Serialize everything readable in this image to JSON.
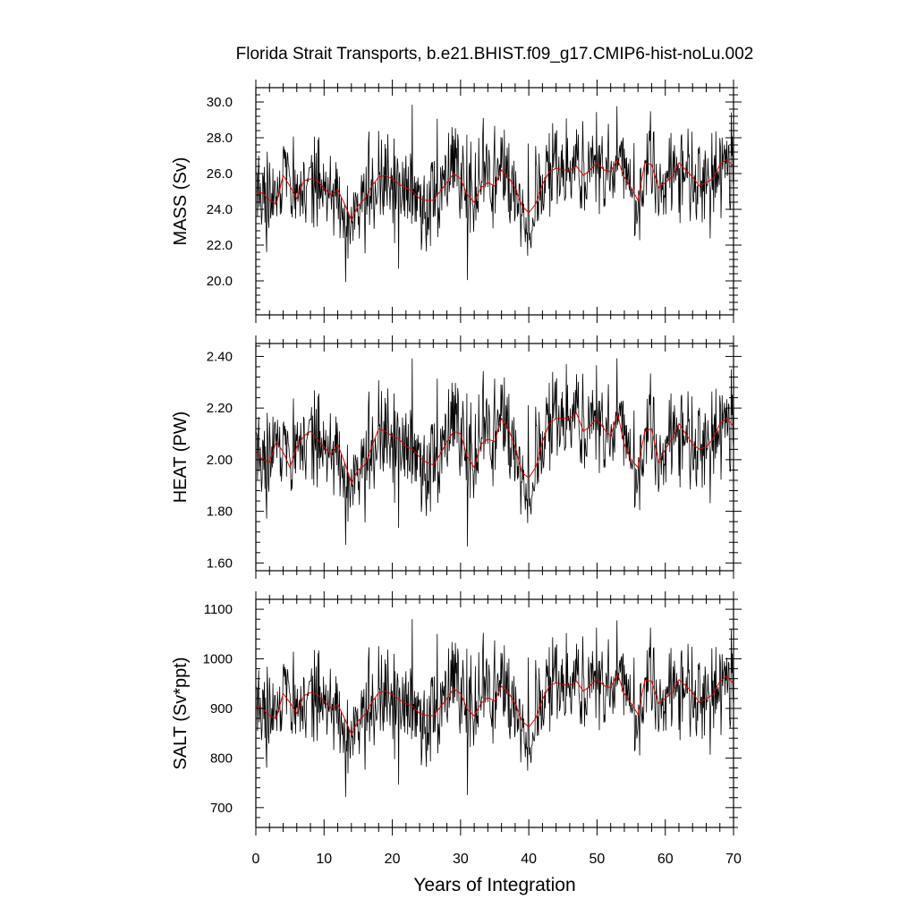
{
  "title": "Florida Strait Transports, b.e21.BHIST.f09_g17.CMIP6-hist-noLu.002",
  "xlabel": "Years of Integration",
  "xticks": [
    "0",
    "10",
    "20",
    "30",
    "40",
    "50",
    "60",
    "70"
  ],
  "colors": {
    "raw": "#000000",
    "smoothed": "#e00000",
    "frame": "#000000"
  },
  "chart_data": [
    {
      "type": "line",
      "ylabel": "MASS (Sv)",
      "xlim": [
        0,
        70
      ],
      "ylim": [
        18.1,
        30.8
      ],
      "yticks": [
        "20.0",
        "22.0",
        "24.0",
        "26.0",
        "28.0",
        "30.0"
      ],
      "noise": {
        "mean": 25.35,
        "amplitude": 2.2,
        "minimum": 18.1,
        "maximum": 30.7
      },
      "series": [
        {
          "role": "raw-monthly",
          "samples_per_year": 12
        },
        {
          "role": "smoothed",
          "x": [
            0,
            1,
            2,
            3,
            4,
            5,
            6,
            7,
            8,
            9,
            10,
            11,
            12,
            13,
            14,
            15,
            16,
            17,
            18,
            19,
            20,
            21,
            22,
            23,
            24,
            25,
            26,
            27,
            28,
            29,
            30,
            31,
            32,
            33,
            34,
            35,
            36,
            37,
            38,
            39,
            40,
            41,
            42,
            43,
            44,
            45,
            46,
            47,
            48,
            49,
            50,
            51,
            52,
            53,
            54,
            55,
            56,
            57,
            58,
            59,
            60,
            61,
            62,
            63,
            64,
            65,
            66,
            67,
            68,
            69,
            70
          ],
          "y": [
            25.0,
            24.9,
            24.5,
            24.3,
            25.9,
            25.3,
            24.6,
            25.6,
            25.7,
            25.6,
            25.2,
            24.8,
            25.1,
            24.3,
            23.4,
            24.2,
            24.6,
            25.3,
            25.8,
            25.9,
            25.7,
            25.4,
            25.2,
            25.0,
            24.6,
            24.5,
            24.5,
            25.0,
            25.5,
            26.0,
            25.7,
            24.8,
            24.4,
            25.2,
            25.5,
            25.3,
            26.2,
            25.8,
            25.2,
            24.2,
            23.8,
            24.3,
            25.4,
            26.1,
            26.3,
            26.2,
            26.2,
            26.4,
            25.9,
            26.2,
            26.6,
            26.2,
            26.1,
            26.8,
            25.8,
            25.2,
            24.5,
            26.6,
            26.5,
            25.2,
            25.5,
            25.8,
            26.6,
            26.2,
            25.8,
            25.3,
            25.5,
            25.7,
            26.5,
            26.8,
            26.4
          ]
        }
      ]
    },
    {
      "type": "line",
      "ylabel": "HEAT (PW)",
      "xlim": [
        0,
        70
      ],
      "ylim": [
        1.57,
        2.45
      ],
      "yticks": [
        "1.60",
        "1.80",
        "2.00",
        "2.20",
        "2.40"
      ],
      "noise": {
        "mean": 2.04,
        "amplitude": 0.16,
        "minimum": 1.57,
        "maximum": 2.45
      },
      "series": [
        {
          "role": "raw-monthly",
          "samples_per_year": 12
        },
        {
          "role": "smoothed",
          "x": [
            0,
            1,
            2,
            3,
            4,
            5,
            6,
            7,
            8,
            9,
            10,
            11,
            12,
            13,
            14,
            15,
            16,
            17,
            18,
            19,
            20,
            21,
            22,
            23,
            24,
            25,
            26,
            27,
            28,
            29,
            30,
            31,
            32,
            33,
            34,
            35,
            36,
            37,
            38,
            39,
            40,
            41,
            42,
            43,
            44,
            45,
            46,
            47,
            48,
            49,
            50,
            51,
            52,
            53,
            54,
            55,
            56,
            57,
            58,
            59,
            60,
            61,
            62,
            63,
            64,
            65,
            66,
            67,
            68,
            69,
            70
          ],
          "y": [
            2.03,
            2.0,
            1.99,
            2.07,
            2.03,
            1.97,
            2.05,
            2.09,
            2.11,
            2.08,
            2.05,
            2.02,
            2.06,
            1.99,
            1.91,
            1.96,
            1.98,
            2.05,
            2.12,
            2.11,
            2.09,
            2.08,
            2.05,
            2.04,
            2.01,
            1.99,
            1.98,
            2.02,
            2.07,
            2.11,
            2.1,
            2.01,
            1.97,
            2.06,
            2.08,
            2.07,
            2.16,
            2.12,
            2.05,
            1.95,
            1.93,
            1.97,
            2.07,
            2.14,
            2.16,
            2.16,
            2.16,
            2.18,
            2.11,
            2.13,
            2.16,
            2.12,
            2.09,
            2.18,
            2.06,
            2.0,
            1.97,
            2.11,
            2.12,
            1.99,
            2.04,
            2.08,
            2.14,
            2.1,
            2.06,
            2.04,
            2.05,
            2.08,
            2.14,
            2.16,
            2.13
          ]
        }
      ]
    },
    {
      "type": "line",
      "ylabel": "SALT (Sv*ppt)",
      "xlim": [
        0,
        70
      ],
      "ylim": [
        660,
        1120
      ],
      "yticks": [
        "700",
        "800",
        "900",
        "1000",
        "1100"
      ],
      "noise": {
        "mean": 912,
        "amplitude": 80,
        "minimum": 660,
        "maximum": 1118
      },
      "series": [
        {
          "role": "raw-monthly",
          "samples_per_year": 12
        },
        {
          "role": "smoothed",
          "x": [
            0,
            1,
            2,
            3,
            4,
            5,
            6,
            7,
            8,
            9,
            10,
            11,
            12,
            13,
            14,
            15,
            16,
            17,
            18,
            19,
            20,
            21,
            22,
            23,
            24,
            25,
            26,
            27,
            28,
            29,
            30,
            31,
            32,
            33,
            34,
            35,
            36,
            37,
            38,
            39,
            40,
            41,
            42,
            43,
            44,
            45,
            46,
            47,
            48,
            49,
            50,
            51,
            52,
            53,
            54,
            55,
            56,
            57,
            58,
            59,
            60,
            61,
            62,
            63,
            64,
            65,
            66,
            67,
            68,
            69,
            70
          ],
          "y": [
            905,
            900,
            885,
            880,
            930,
            912,
            890,
            925,
            932,
            928,
            915,
            900,
            908,
            880,
            848,
            875,
            888,
            912,
            932,
            935,
            928,
            918,
            910,
            904,
            890,
            886,
            885,
            902,
            920,
            940,
            930,
            898,
            885,
            910,
            922,
            915,
            945,
            932,
            910,
            875,
            862,
            880,
            918,
            945,
            952,
            948,
            946,
            955,
            935,
            946,
            960,
            946,
            942,
            970,
            930,
            910,
            888,
            957,
            955,
            910,
            920,
            932,
            958,
            946,
            932,
            912,
            920,
            928,
            955,
            965,
            950
          ]
        }
      ]
    }
  ]
}
